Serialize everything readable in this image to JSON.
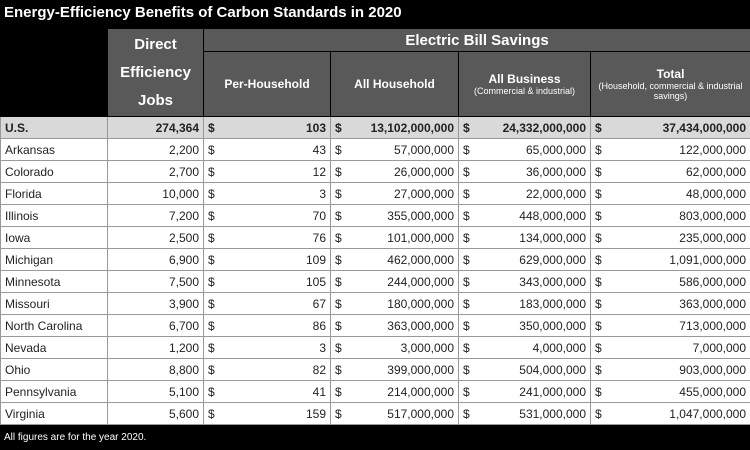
{
  "title": "Energy-Efficiency Benefits of Carbon Standards in 2020",
  "table": {
    "header": {
      "jobs": "Direct Efficiency Jobs",
      "group": "Electric Bill Savings",
      "columns": [
        {
          "label": "Per-Household"
        },
        {
          "label": "All Household"
        },
        {
          "label": "All Business",
          "sub": "(Commercial & industrial)"
        },
        {
          "label": "Total",
          "sub": "(Household, commercial & industrial savings)"
        }
      ]
    },
    "rows": [
      [
        "U.S.",
        "274,364",
        "$",
        "103",
        "$",
        "13,102,000,000",
        "$",
        "24,332,000,000",
        "$",
        "37,434,000,000"
      ],
      [
        "Arkansas",
        "2,200",
        "$",
        "43",
        "$",
        "57,000,000",
        "$",
        "65,000,000",
        "$",
        "122,000,000"
      ],
      [
        "Colorado",
        "2,700",
        "$",
        "12",
        "$",
        "26,000,000",
        "$",
        "36,000,000",
        "$",
        "62,000,000"
      ],
      [
        "Florida",
        "10,000",
        "$",
        "3",
        "$",
        "27,000,000",
        "$",
        "22,000,000",
        "$",
        "48,000,000"
      ],
      [
        "Illinois",
        "7,200",
        "$",
        "70",
        "$",
        "355,000,000",
        "$",
        "448,000,000",
        "$",
        "803,000,000"
      ],
      [
        "Iowa",
        "2,500",
        "$",
        "76",
        "$",
        "101,000,000",
        "$",
        "134,000,000",
        "$",
        "235,000,000"
      ],
      [
        "Michigan",
        "6,900",
        "$",
        "109",
        "$",
        "462,000,000",
        "$",
        "629,000,000",
        "$",
        "1,091,000,000"
      ],
      [
        "Minnesota",
        "7,500",
        "$",
        "105",
        "$",
        "244,000,000",
        "$",
        "343,000,000",
        "$",
        "586,000,000"
      ],
      [
        "Missouri",
        "3,900",
        "$",
        "67",
        "$",
        "180,000,000",
        "$",
        "183,000,000",
        "$",
        "363,000,000"
      ],
      [
        "North Carolina",
        "6,700",
        "$",
        "86",
        "$",
        "363,000,000",
        "$",
        "350,000,000",
        "$",
        "713,000,000"
      ],
      [
        "Nevada",
        "1,200",
        "$",
        "3",
        "$",
        "3,000,000",
        "$",
        "4,000,000",
        "$",
        "7,000,000"
      ],
      [
        "Ohio",
        "8,800",
        "$",
        "82",
        "$",
        "399,000,000",
        "$",
        "504,000,000",
        "$",
        "903,000,000"
      ],
      [
        "Pennsylvania",
        "5,100",
        "$",
        "41",
        "$",
        "214,000,000",
        "$",
        "241,000,000",
        "$",
        "455,000,000"
      ],
      [
        "Virginia",
        "5,600",
        "$",
        "159",
        "$",
        "517,000,000",
        "$",
        "531,000,000",
        "$",
        "1,047,000,000"
      ]
    ]
  },
  "footnote": "All figures are for the year 2020."
}
